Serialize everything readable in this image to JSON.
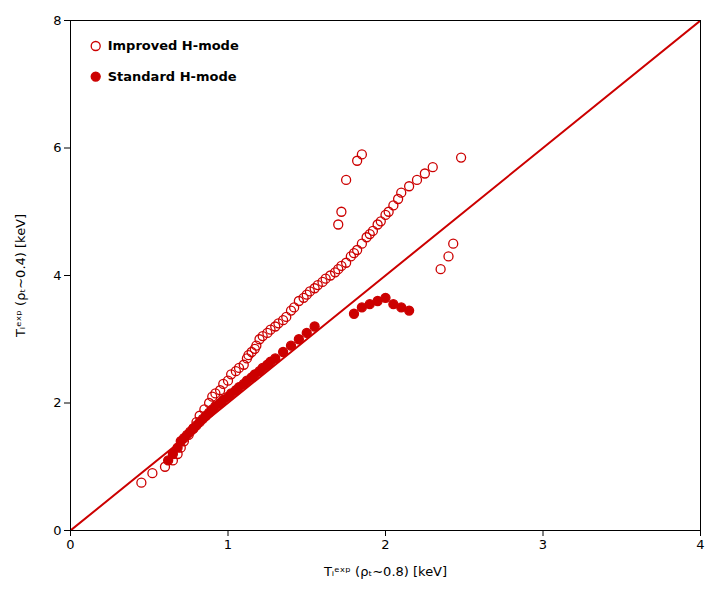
{
  "chart_data": {
    "type": "scatter",
    "xlabel": "Tᵢᵉˣᵖ (ρₜ∼0.8) [keV]",
    "ylabel": "Tᵢᵉˣᵖ (ρₜ∼0.4) [keV]",
    "xlim": [
      0,
      4
    ],
    "ylim": [
      0,
      8
    ],
    "xticks": [
      0,
      1,
      2,
      3,
      4
    ],
    "yticks": [
      0,
      2,
      4,
      6,
      8
    ],
    "grid": false,
    "legend": "upper left",
    "series": [
      {
        "type": "line",
        "color": "#cc0000",
        "line_style": "solid",
        "x": [
          0,
          4
        ],
        "values": [
          0,
          8
        ]
      },
      {
        "name": "Improved H-mode",
        "type": "scatter",
        "color": "#cc0000",
        "marker": "circle_open",
        "x": [
          0.45,
          0.52,
          0.6,
          0.65,
          0.68,
          0.7,
          0.72,
          0.75,
          0.78,
          0.8,
          0.82,
          0.85,
          0.88,
          0.9,
          0.92,
          0.95,
          0.97,
          1.0,
          1.02,
          1.05,
          1.07,
          1.1,
          1.12,
          1.13,
          1.15,
          1.17,
          1.18,
          1.2,
          1.22,
          1.25,
          1.27,
          1.3,
          1.32,
          1.35,
          1.37,
          1.4,
          1.42,
          1.45,
          1.48,
          1.5,
          1.52,
          1.55,
          1.57,
          1.6,
          1.62,
          1.65,
          1.68,
          1.7,
          1.72,
          1.75,
          1.78,
          1.8,
          1.82,
          1.85,
          1.88,
          1.9,
          1.92,
          1.95,
          1.97,
          2.0,
          2.02,
          2.05,
          2.08,
          2.1,
          2.15,
          2.2,
          2.25,
          2.3,
          2.35,
          2.4,
          2.43,
          2.48,
          1.7,
          1.72,
          1.75,
          1.82,
          1.85
        ],
        "values": [
          0.75,
          0.9,
          1.0,
          1.1,
          1.2,
          1.3,
          1.4,
          1.5,
          1.6,
          1.7,
          1.8,
          1.9,
          2.0,
          2.1,
          2.15,
          2.2,
          2.3,
          2.35,
          2.45,
          2.5,
          2.55,
          2.6,
          2.7,
          2.75,
          2.8,
          2.85,
          2.9,
          3.0,
          3.05,
          3.1,
          3.15,
          3.2,
          3.25,
          3.3,
          3.35,
          3.45,
          3.5,
          3.6,
          3.65,
          3.7,
          3.75,
          3.8,
          3.85,
          3.9,
          3.95,
          4.0,
          4.05,
          4.1,
          4.15,
          4.2,
          4.3,
          4.35,
          4.4,
          4.5,
          4.6,
          4.65,
          4.7,
          4.8,
          4.85,
          4.95,
          5.0,
          5.1,
          5.2,
          5.3,
          5.4,
          5.5,
          5.6,
          5.7,
          4.1,
          4.3,
          4.5,
          5.85,
          4.8,
          5.0,
          5.5,
          5.8,
          5.9
        ]
      },
      {
        "name": "Standard H-mode",
        "type": "scatter",
        "color": "#cc0000",
        "marker": "circle",
        "x": [
          0.62,
          0.65,
          0.68,
          0.7,
          0.72,
          0.74,
          0.76,
          0.78,
          0.8,
          0.82,
          0.84,
          0.86,
          0.88,
          0.9,
          0.92,
          0.95,
          0.97,
          1.0,
          1.02,
          1.05,
          1.07,
          1.1,
          1.12,
          1.15,
          1.17,
          1.2,
          1.22,
          1.25,
          1.27,
          1.3,
          1.35,
          1.4,
          1.45,
          1.5,
          1.55,
          1.8,
          1.85,
          1.9,
          1.95,
          2.0,
          2.05,
          2.1,
          2.15
        ],
        "values": [
          1.1,
          1.2,
          1.3,
          1.4,
          1.45,
          1.5,
          1.55,
          1.6,
          1.65,
          1.7,
          1.75,
          1.8,
          1.85,
          1.9,
          1.95,
          2.0,
          2.05,
          2.1,
          2.15,
          2.2,
          2.25,
          2.3,
          2.35,
          2.4,
          2.45,
          2.5,
          2.55,
          2.6,
          2.65,
          2.7,
          2.8,
          2.9,
          3.0,
          3.1,
          3.2,
          3.4,
          3.5,
          3.55,
          3.6,
          3.65,
          3.55,
          3.5,
          3.45
        ]
      }
    ]
  }
}
